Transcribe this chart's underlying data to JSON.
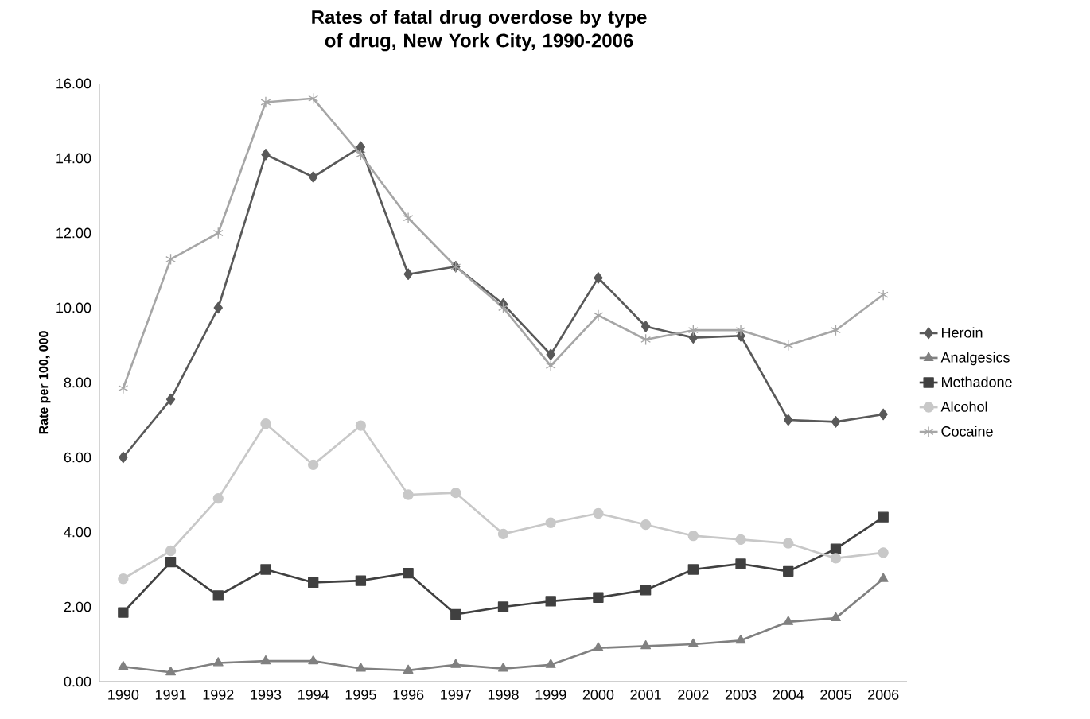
{
  "chart_data": {
    "type": "line",
    "title": "Rates of fatal drug overdose by type of drug, New York City, 1990-2006",
    "ylabel": "Rate per 100, 000",
    "categories": [
      "1990",
      "1991",
      "1992",
      "1993",
      "1994",
      "1995",
      "1996",
      "1997",
      "1998",
      "1999",
      "2000",
      "2001",
      "2002",
      "2003",
      "2004",
      "2005",
      "2006"
    ],
    "series": [
      {
        "name": "Heroin",
        "color": "#595959",
        "marker": "diamond",
        "values": [
          6.0,
          7.55,
          10.0,
          14.1,
          13.5,
          14.3,
          10.9,
          11.1,
          10.1,
          8.75,
          10.8,
          9.5,
          9.2,
          9.25,
          7.0,
          6.95,
          7.15
        ]
      },
      {
        "name": "Analgesics",
        "color": "#808080",
        "marker": "triangle",
        "values": [
          0.4,
          0.25,
          0.5,
          0.55,
          0.55,
          0.35,
          0.3,
          0.45,
          0.35,
          0.45,
          0.9,
          0.95,
          1.0,
          1.1,
          1.6,
          1.7,
          2.75
        ]
      },
      {
        "name": "Methadone",
        "color": "#404040",
        "marker": "square",
        "values": [
          1.85,
          3.2,
          2.3,
          3.0,
          2.65,
          2.7,
          2.9,
          1.8,
          2.0,
          2.15,
          2.25,
          2.45,
          3.0,
          3.15,
          2.95,
          3.55,
          4.4
        ]
      },
      {
        "name": "Alcohol",
        "color": "#c8c8c8",
        "marker": "circle",
        "values": [
          2.75,
          3.5,
          4.9,
          6.9,
          5.8,
          6.85,
          5.0,
          5.05,
          3.95,
          4.25,
          4.5,
          4.2,
          3.9,
          3.8,
          3.7,
          3.3,
          3.45
        ]
      },
      {
        "name": "Cocaine",
        "color": "#a6a6a6",
        "marker": "cross",
        "values": [
          7.85,
          11.3,
          12.0,
          15.5,
          15.6,
          14.1,
          12.4,
          11.1,
          10.0,
          8.45,
          9.8,
          9.15,
          9.4,
          9.4,
          9.0,
          9.4,
          10.35
        ]
      }
    ],
    "ylim": [
      0,
      16
    ],
    "yticks": [
      {
        "value": 0,
        "label": "0.00"
      },
      {
        "value": 2,
        "label": "2.00"
      },
      {
        "value": 4,
        "label": "4.00"
      },
      {
        "value": 6,
        "label": "6.00"
      },
      {
        "value": 8,
        "label": "8.00"
      },
      {
        "value": 10,
        "label": "10.00"
      },
      {
        "value": 12,
        "label": "12.00"
      },
      {
        "value": 14,
        "label": "14.00"
      },
      {
        "value": 16,
        "label": "16.00"
      }
    ],
    "grid": false,
    "legend": "right",
    "line_style": "solid"
  }
}
